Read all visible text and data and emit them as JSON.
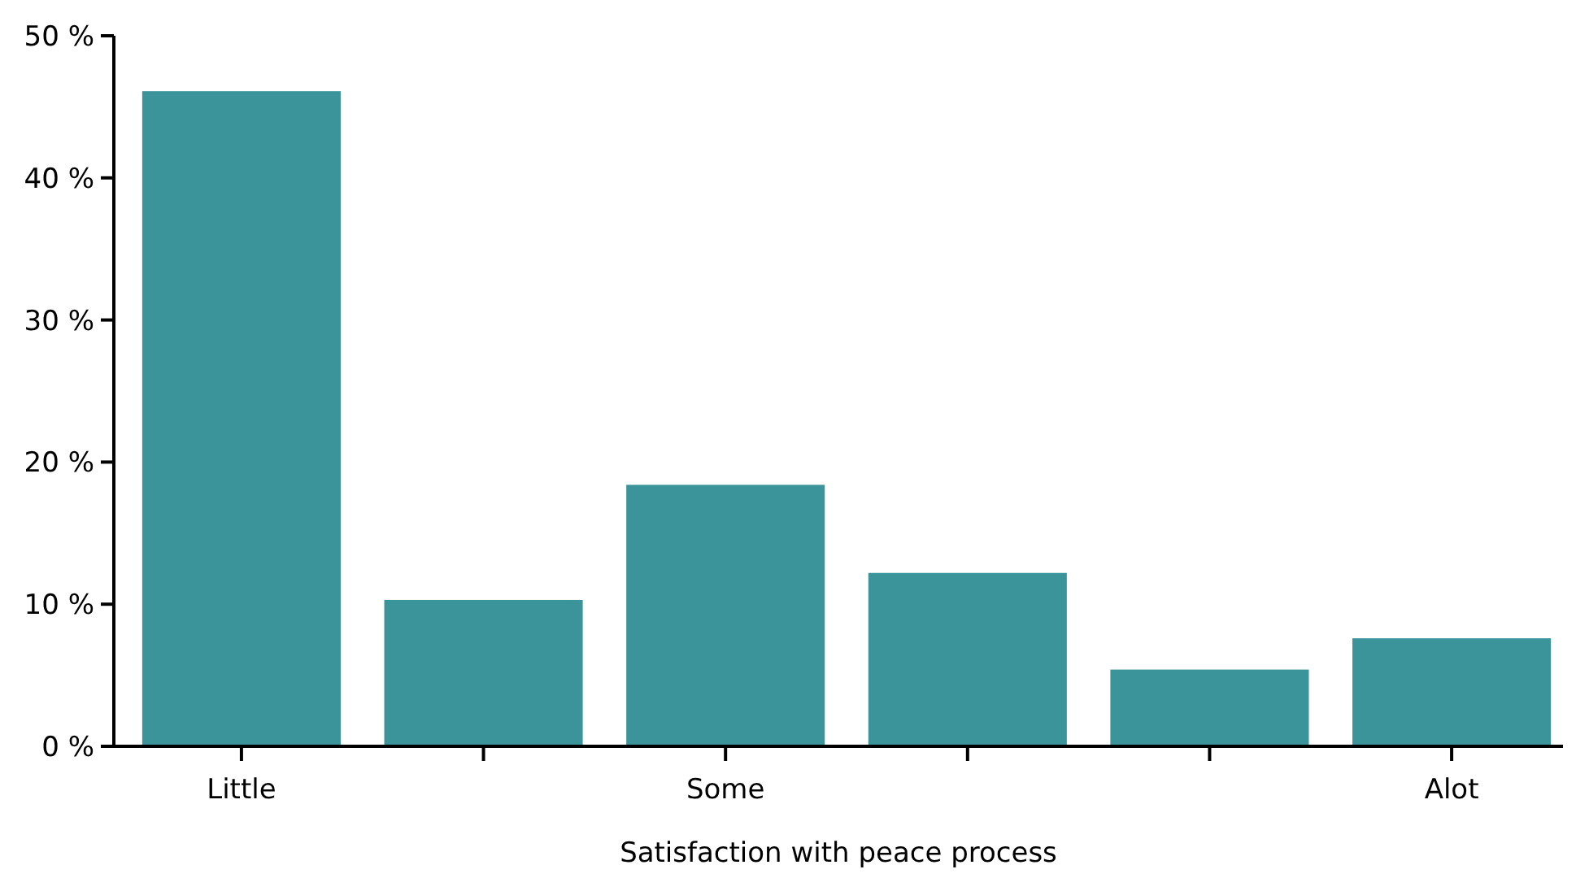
{
  "chart_data": {
    "type": "bar",
    "xlabel": "Satisfaction with peace process",
    "categories": [
      "Little",
      null,
      "Some",
      null,
      null,
      "Alot"
    ],
    "values": [
      46.1,
      10.3,
      18.4,
      12.2,
      5.4,
      7.6
    ],
    "color": "#3a9499",
    "ylim": [
      0,
      50
    ],
    "yticks": [
      {
        "value": 0,
        "label": "0 %"
      },
      {
        "value": 10,
        "label": "10 %"
      },
      {
        "value": 20,
        "label": "20 %"
      },
      {
        "value": 30,
        "label": "30 %"
      },
      {
        "value": 40,
        "label": "40 %"
      },
      {
        "value": 50,
        "label": "50 %"
      }
    ],
    "grid": false
  }
}
